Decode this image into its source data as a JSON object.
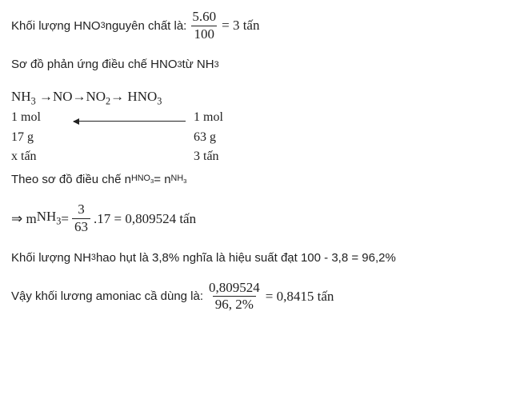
{
  "line1": {
    "pre": "Khối lượng HNO",
    "sub1": "3",
    "mid": " nguyên chất là: ",
    "frac_num": "5.60",
    "frac_den": "100",
    "post": " = 3  tấn"
  },
  "line2": {
    "pre": "Sơ đồ phản ứng điều chế HNO",
    "sub1": "3",
    "mid": " từ NH",
    "sub2": "3"
  },
  "scheme": {
    "eq_parts": [
      "NH",
      "3",
      "  →NO→NO",
      "2",
      "→ HNO",
      "3"
    ],
    "r1c1": "1 mol",
    "r1c2": "1 mol",
    "r2c1": "17 g",
    "r2c2": "63 g",
    "r3c1": "x  tấn",
    "r3c2": "3 tấn"
  },
  "line3": {
    "pre": "Theo sơ đồ điều chế n",
    "s1a": "HNO",
    "s1b": "3",
    "mid": " = n",
    "s2a": "NH",
    "s2b": "3"
  },
  "line4": {
    "arrow": "⇒ m",
    "suba": "NH",
    "subb": "3",
    "eq": " = ",
    "frac_num": "3",
    "frac_den": "63",
    "post_frac": ".17  = 0,809524 tấn"
  },
  "line5": {
    "pre": "Khối lượng NH",
    "sub": "3",
    "post": " hao hụt là 3,8% nghĩa là hiệu suất đạt 100 - 3,8 = 96,2%"
  },
  "line6": {
    "pre": "Vậy khối lương amoniac cầ dùng là: ",
    "frac_num": "0,809524",
    "frac_den": "96, 2%",
    "post": " = 0,8415 tấn"
  }
}
